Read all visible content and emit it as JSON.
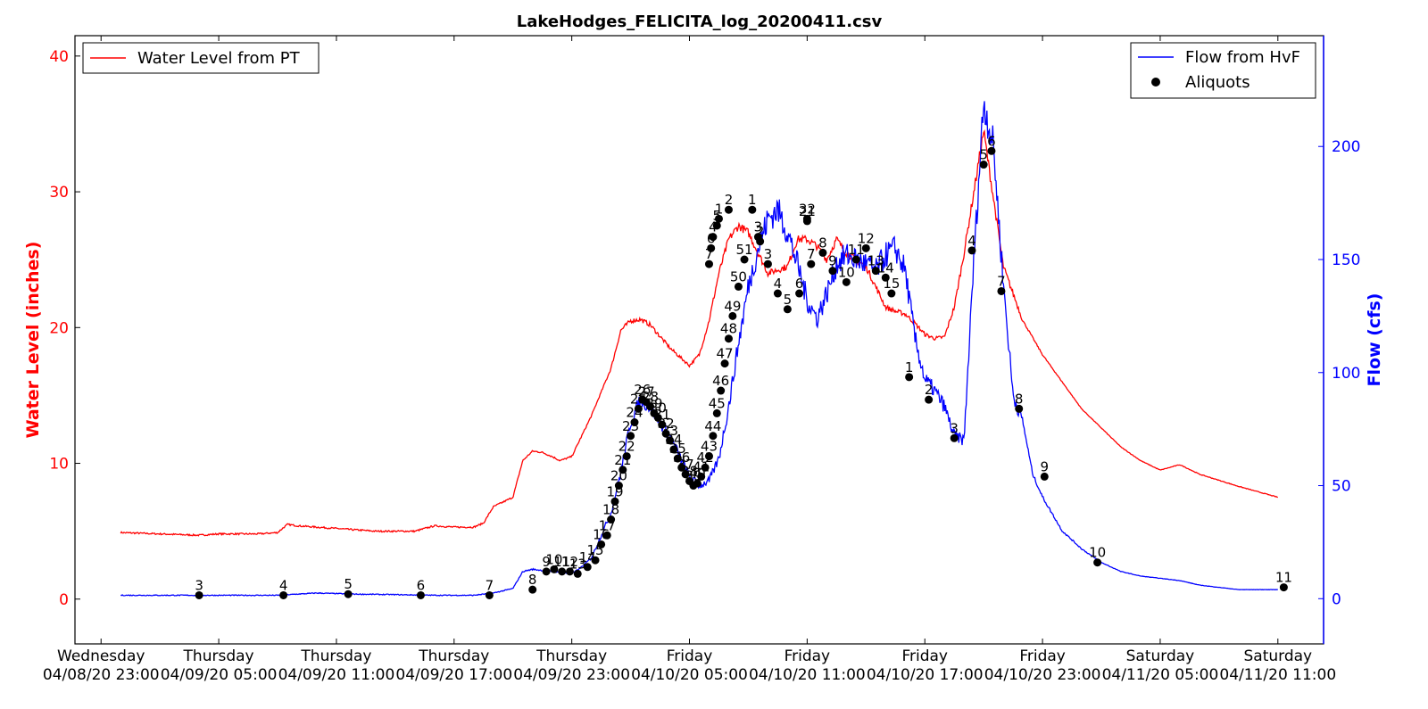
{
  "colors": {
    "water_level": "#ff0000",
    "flow": "#0000ff",
    "aliquot": "#000000",
    "axis": "#000000",
    "background": "#ffffff"
  },
  "chart_data": {
    "type": "line",
    "title": "LakeHodges_FELICITA_log_20200411.csv",
    "grid": false,
    "xlabel": "",
    "x_range": [
      "04/08/20 21:40",
      "04/11/20 13:20"
    ],
    "x_ticks": [
      {
        "day": "Wednesday",
        "date": "04/08/20 23:00",
        "t": 0
      },
      {
        "day": "Thursday",
        "date": "04/09/20 05:00",
        "t": 6
      },
      {
        "day": "Thursday",
        "date": "04/09/20 11:00",
        "t": 12
      },
      {
        "day": "Thursday",
        "date": "04/09/20 17:00",
        "t": 18
      },
      {
        "day": "Thursday",
        "date": "04/09/20 23:00",
        "t": 24
      },
      {
        "day": "Friday",
        "date": "04/10/20 05:00",
        "t": 30
      },
      {
        "day": "Friday",
        "date": "04/10/20 11:00",
        "t": 36
      },
      {
        "day": "Friday",
        "date": "04/10/20 17:00",
        "t": 42
      },
      {
        "day": "Friday",
        "date": "04/10/20 23:00",
        "t": 48
      },
      {
        "day": "Saturday",
        "date": "04/11/20 05:00",
        "t": 54
      },
      {
        "day": "Saturday",
        "date": "04/11/20 11:00",
        "t": 60
      }
    ],
    "y_left": {
      "label": "Water Level (inches)",
      "range": [
        -3.3,
        41.5
      ],
      "ticks": [
        "0",
        "10",
        "20",
        "30",
        "40"
      ]
    },
    "y_right": {
      "label": "Flow (cfs)",
      "range": [
        -20,
        249
      ],
      "ticks": [
        "0",
        "50",
        "100",
        "150",
        "200"
      ]
    },
    "legend_left": {
      "placement": "upper-left",
      "entries": [
        "Water Level from PT"
      ]
    },
    "legend_right": {
      "placement": "upper-right",
      "entries": [
        "Flow from HvF",
        "Aliquots"
      ]
    },
    "series": [
      {
        "name": "Water Level from PT",
        "axis": "left",
        "x": [
          1,
          3,
          5,
          6,
          8,
          9,
          9.5,
          10,
          12,
          14,
          16,
          17,
          18,
          19,
          19.5,
          20,
          21,
          21.5,
          22,
          22.5,
          23,
          23.4,
          24,
          25,
          26,
          26.5,
          27,
          27.5,
          28,
          29,
          30,
          30.5,
          31,
          31.5,
          32,
          32.5,
          33,
          33.5,
          34,
          35,
          35.5,
          36,
          36.5,
          37,
          37.5,
          38,
          39,
          40,
          40.5,
          41,
          41.5,
          42,
          42.5,
          43,
          43.5,
          44,
          45,
          46,
          47,
          48,
          50,
          52,
          53,
          54,
          55,
          56,
          58,
          60
        ],
        "y": [
          4.9,
          4.8,
          4.7,
          4.8,
          4.8,
          4.9,
          5.5,
          5.4,
          5.2,
          5.0,
          5.0,
          5.4,
          5.3,
          5.3,
          5.6,
          6.8,
          7.5,
          10.2,
          10.9,
          10.8,
          10.5,
          10.2,
          10.5,
          13.5,
          17,
          19.8,
          20.5,
          20.6,
          20.2,
          18.5,
          17.2,
          18,
          20.5,
          24,
          26.5,
          27.5,
          27,
          25.5,
          24,
          24.5,
          26.5,
          26.5,
          26,
          25,
          26.5,
          25.5,
          24.5,
          21.5,
          21.2,
          21,
          20.3,
          19.5,
          19.2,
          19.3,
          21.5,
          25.5,
          34.5,
          24.5,
          20.5,
          18,
          14,
          11.2,
          10.2,
          9.5,
          9.9,
          9.2,
          8.3,
          7.5
        ]
      },
      {
        "name": "Flow from HvF",
        "axis": "right",
        "x": [
          1,
          3,
          5,
          9,
          11,
          13,
          15,
          17,
          19,
          20,
          21,
          21.5,
          22,
          23,
          24,
          24.5,
          25,
          25.5,
          26,
          26.5,
          27,
          27.5,
          28,
          28.5,
          29,
          29.5,
          30,
          30.5,
          31,
          31.5,
          32,
          32.5,
          33,
          33.5,
          34,
          34.5,
          35,
          35.5,
          36,
          36.5,
          37,
          37.5,
          38,
          38.5,
          39,
          39.5,
          40,
          40.5,
          41,
          41.5,
          42,
          42.5,
          43,
          43.5,
          44,
          44.5,
          45,
          45.5,
          46,
          46.5,
          47,
          47.5,
          48,
          49,
          50,
          51,
          52,
          53,
          54,
          55,
          56,
          58,
          60
        ],
        "y": [
          1.5,
          1.5,
          1.5,
          1.5,
          2.5,
          2,
          1.8,
          1.5,
          1.5,
          2.5,
          4.5,
          12,
          13,
          12,
          11,
          14,
          18,
          28,
          38,
          56,
          78,
          88,
          85,
          78,
          72,
          63,
          54,
          50,
          52,
          62,
          85,
          113,
          138,
          155,
          168,
          172,
          162,
          148,
          132,
          124,
          135,
          148,
          152,
          150,
          148,
          145,
          152,
          155,
          145,
          115,
          97,
          92,
          85,
          72,
          70,
          150,
          220,
          200,
          140,
          90,
          78,
          55,
          45,
          30,
          22,
          16,
          12,
          10,
          9,
          8,
          6,
          4,
          4
        ]
      }
    ],
    "aliquots": [
      {
        "label": "3",
        "x": 5,
        "y": 1.5
      },
      {
        "label": "4",
        "x": 9.3,
        "y": 1.5
      },
      {
        "label": "5",
        "x": 12.6,
        "y": 2
      },
      {
        "label": "6",
        "x": 16.3,
        "y": 1.5
      },
      {
        "label": "7",
        "x": 19.8,
        "y": 1.5
      },
      {
        "label": "8",
        "x": 22,
        "y": 4
      },
      {
        "label": "9",
        "x": 22.7,
        "y": 12
      },
      {
        "label": "10",
        "x": 23.1,
        "y": 13
      },
      {
        "label": "11",
        "x": 23.5,
        "y": 12
      },
      {
        "label": "12",
        "x": 23.9,
        "y": 12
      },
      {
        "label": "13",
        "x": 24.3,
        "y": 11
      },
      {
        "label": "14",
        "x": 24.8,
        "y": 14
      },
      {
        "label": "15",
        "x": 25.2,
        "y": 17
      },
      {
        "label": "16",
        "x": 25.5,
        "y": 24
      },
      {
        "label": "17",
        "x": 25.8,
        "y": 28
      },
      {
        "label": "18",
        "x": 26,
        "y": 35
      },
      {
        "label": "19",
        "x": 26.2,
        "y": 43
      },
      {
        "label": "20",
        "x": 26.4,
        "y": 50
      },
      {
        "label": "21",
        "x": 26.6,
        "y": 57
      },
      {
        "label": "22",
        "x": 26.8,
        "y": 63
      },
      {
        "label": "23",
        "x": 27,
        "y": 72
      },
      {
        "label": "24",
        "x": 27.2,
        "y": 78
      },
      {
        "label": "25",
        "x": 27.4,
        "y": 84
      },
      {
        "label": "26",
        "x": 27.6,
        "y": 88
      },
      {
        "label": "27",
        "x": 27.8,
        "y": 87
      },
      {
        "label": "28",
        "x": 28,
        "y": 85
      },
      {
        "label": "29",
        "x": 28.2,
        "y": 82
      },
      {
        "label": "30",
        "x": 28.4,
        "y": 80
      },
      {
        "label": "31",
        "x": 28.6,
        "y": 77
      },
      {
        "label": "32",
        "x": 28.8,
        "y": 73
      },
      {
        "label": "33",
        "x": 29,
        "y": 70
      },
      {
        "label": "34",
        "x": 29.2,
        "y": 66
      },
      {
        "label": "35",
        "x": 29.4,
        "y": 62
      },
      {
        "label": "36",
        "x": 29.6,
        "y": 58
      },
      {
        "label": "37",
        "x": 29.8,
        "y": 55
      },
      {
        "label": "38",
        "x": 30,
        "y": 52
      },
      {
        "label": "39",
        "x": 30.2,
        "y": 50
      },
      {
        "label": "40",
        "x": 30.4,
        "y": 51
      },
      {
        "label": "41",
        "x": 30.6,
        "y": 54
      },
      {
        "label": "42",
        "x": 30.8,
        "y": 58
      },
      {
        "label": "43",
        "x": 31,
        "y": 63
      },
      {
        "label": "44",
        "x": 31.2,
        "y": 72
      },
      {
        "label": "45",
        "x": 31.4,
        "y": 82
      },
      {
        "label": "46",
        "x": 31.6,
        "y": 92
      },
      {
        "label": "47",
        "x": 31.8,
        "y": 104
      },
      {
        "label": "48",
        "x": 32,
        "y": 115
      },
      {
        "label": "49",
        "x": 32.2,
        "y": 125
      },
      {
        "label": "50",
        "x": 32.5,
        "y": 138
      },
      {
        "label": "51",
        "x": 32.8,
        "y": 150
      },
      {
        "label": "1",
        "x": 33.2,
        "y": 172
      },
      {
        "label": "2",
        "x": 33.6,
        "y": 158
      },
      {
        "label": "3",
        "x": 34,
        "y": 148
      },
      {
        "label": "4",
        "x": 34.5,
        "y": 135
      },
      {
        "label": "5",
        "x": 35,
        "y": 128
      },
      {
        "label": "6",
        "x": 35.6,
        "y": 135
      },
      {
        "label": "7",
        "x": 36.2,
        "y": 148
      },
      {
        "label": "8",
        "x": 36.8,
        "y": 153
      },
      {
        "label": "9",
        "x": 37.3,
        "y": 145
      },
      {
        "label": "10",
        "x": 38,
        "y": 140
      },
      {
        "label": "11",
        "x": 38.5,
        "y": 150
      },
      {
        "label": "12",
        "x": 39,
        "y": 155
      },
      {
        "label": "13",
        "x": 39.5,
        "y": 145
      },
      {
        "label": "14",
        "x": 40,
        "y": 142
      },
      {
        "label": "15",
        "x": 40.3,
        "y": 135
      },
      {
        "label": "1",
        "x": 31.5,
        "y": 168
      },
      {
        "label": "2",
        "x": 32,
        "y": 172
      },
      {
        "label": "3",
        "x": 33.5,
        "y": 160
      },
      {
        "label": "4",
        "x": 31.2,
        "y": 160
      },
      {
        "label": "5",
        "x": 31.4,
        "y": 165
      },
      {
        "label": "6",
        "x": 31.1,
        "y": 155
      },
      {
        "label": "7",
        "x": 31,
        "y": 148
      },
      {
        "label": "21",
        "x": 36,
        "y": 167
      },
      {
        "label": "32",
        "x": 36,
        "y": 168
      },
      {
        "label": "1",
        "x": 41.2,
        "y": 98
      },
      {
        "label": "2",
        "x": 42.2,
        "y": 88
      },
      {
        "label": "3",
        "x": 43.5,
        "y": 71
      },
      {
        "label": "4",
        "x": 44.4,
        "y": 154
      },
      {
        "label": "5",
        "x": 45,
        "y": 192
      },
      {
        "label": "6",
        "x": 45.4,
        "y": 198
      },
      {
        "label": "7",
        "x": 45.9,
        "y": 136
      },
      {
        "label": "8",
        "x": 46.8,
        "y": 84
      },
      {
        "label": "9",
        "x": 48.1,
        "y": 54
      },
      {
        "label": "10",
        "x": 50.8,
        "y": 16
      },
      {
        "label": "11",
        "x": 60.3,
        "y": 5
      }
    ]
  }
}
